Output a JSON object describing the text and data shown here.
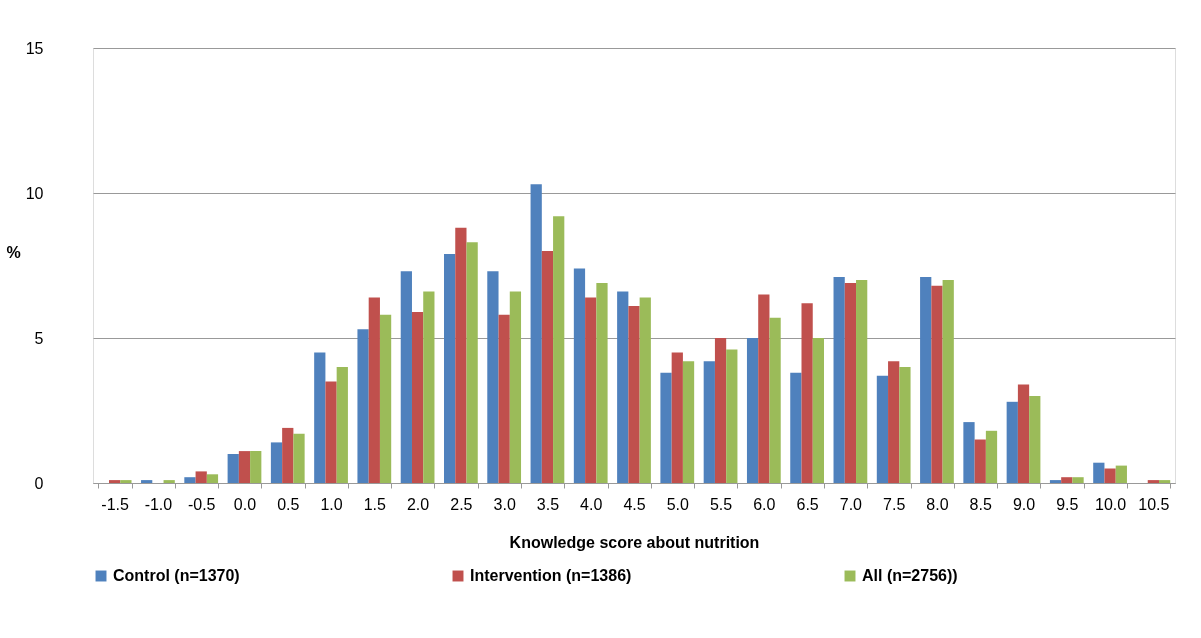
{
  "chart_data": {
    "type": "bar",
    "xlabel": "Knowledge score about nutrition",
    "ylabel": "%",
    "categories": [
      "-1.5",
      "-1.0",
      "-0.5",
      "0.0",
      "0.5",
      "1.0",
      "1.5",
      "2.0",
      "2.5",
      "3.0",
      "3.5",
      "4.0",
      "4.5",
      "5.0",
      "5.5",
      "6.0",
      "6.5",
      "7.0",
      "7.5",
      "8.0",
      "8.5",
      "9.0",
      "9.5",
      "10.0",
      "10.5"
    ],
    "series": [
      {
        "name": "Control (n=1370)",
        "color": "#4f81bd",
        "values": [
          0,
          0.1,
          0.2,
          1.0,
          1.4,
          4.5,
          5.3,
          7.3,
          7.9,
          7.3,
          10.3,
          7.4,
          6.6,
          3.8,
          4.2,
          5.0,
          3.8,
          7.1,
          3.7,
          7.1,
          2.1,
          2.8,
          0.1,
          0.7,
          0
        ]
      },
      {
        "name": "Intervention (n=1386)",
        "color": "#c0504d",
        "values": [
          0.1,
          0,
          0.4,
          1.1,
          1.9,
          3.5,
          6.4,
          5.9,
          8.8,
          5.8,
          8.0,
          6.4,
          6.1,
          4.5,
          5.0,
          6.5,
          6.2,
          6.9,
          4.2,
          6.8,
          1.5,
          3.4,
          0.2,
          0.5,
          0.1
        ]
      },
      {
        "name": "All (n=2756))",
        "color": "#9bbb59",
        "values": [
          0.1,
          0.1,
          0.3,
          1.1,
          1.7,
          4.0,
          5.8,
          6.6,
          8.3,
          6.6,
          9.2,
          6.9,
          6.4,
          4.2,
          4.6,
          5.7,
          5.0,
          7.0,
          4.0,
          7.0,
          1.8,
          3.0,
          0.2,
          0.6,
          0.1
        ]
      }
    ],
    "ylim": [
      0,
      15
    ],
    "yticks": [
      0,
      5,
      10,
      15
    ],
    "grid": "y",
    "legend": "bottom"
  }
}
